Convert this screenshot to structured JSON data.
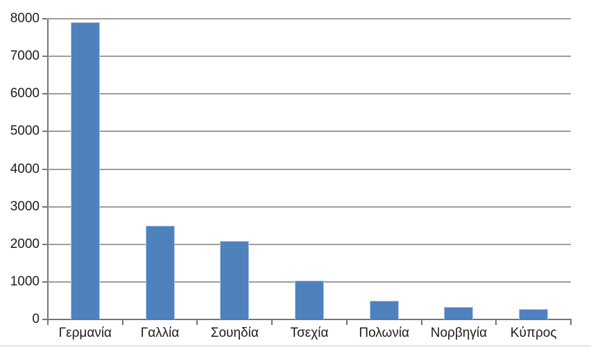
{
  "chart_data": {
    "type": "bar",
    "title": "",
    "xlabel": "",
    "ylabel": "",
    "categories": [
      "Γερμανία",
      "Γαλλία",
      "Σουηδία",
      "Τσεχία",
      "Πολωνία",
      "Νορβηγία",
      "Κύπρος"
    ],
    "values": [
      7900,
      2500,
      2080,
      1040,
      500,
      340,
      280
    ],
    "ylim": [
      0,
      8000
    ],
    "ytick_step": 1000,
    "ytick_labels": [
      "0",
      "1000",
      "2000",
      "3000",
      "4000",
      "5000",
      "6000",
      "7000",
      "8000"
    ],
    "grid": true,
    "legend": "none",
    "colors": {
      "bar_fill": "#4f81bd",
      "bar_edge": "#b7cbe3",
      "gridline": "#9c9c9c",
      "axis": "#757575",
      "text": "#1c1c1c",
      "background": "#ffffff",
      "bottom_line": "#dce4ee"
    }
  }
}
